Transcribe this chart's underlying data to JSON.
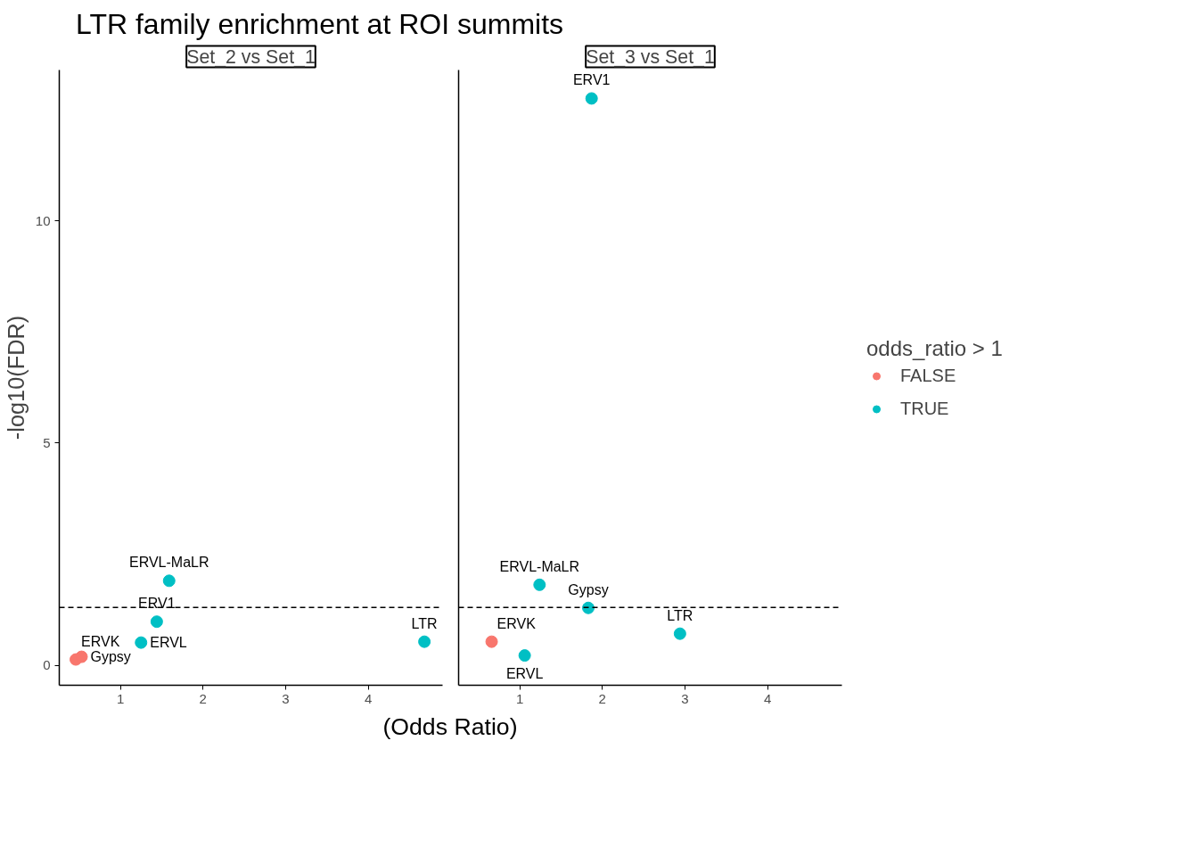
{
  "chart_data": [
    {
      "type": "scatter",
      "title": "LTR family enrichment at ROI summits",
      "subtitle": "Set_2 vs Set_1",
      "xlabel": "(Odds Ratio)",
      "ylabel": "-log10(FDR)",
      "xlim": [
        0.26,
        4.9
      ],
      "ylim": [
        -0.45,
        13.39
      ],
      "xticks": [
        1,
        2,
        3,
        4
      ],
      "yticks": [
        0,
        5,
        10
      ],
      "grid": false,
      "marker": "circle",
      "tick_labels": "xy",
      "series": [
        {
          "color": "#f8766d",
          "x": [
            0.46,
            0.53
          ],
          "values": [
            0.13,
            0.19
          ]
        },
        {
          "color": "#00bfc4",
          "x": [
            1.59,
            1.44,
            1.25,
            4.68
          ],
          "values": [
            1.9,
            0.98,
            0.51,
            0.53
          ]
        }
      ],
      "annotations": [
        {
          "text": "ERVK",
          "x": 0.46,
          "y": 0.13
        },
        {
          "text": "Gypsy",
          "x": 0.53,
          "y": 0.19
        },
        {
          "text": "ERVL-MaLR",
          "x": 1.59,
          "y": 1.9
        },
        {
          "text": "ERV1",
          "x": 1.44,
          "y": 0.98
        },
        {
          "text": "ERVL",
          "x": 1.25,
          "y": 0.51
        },
        {
          "text": "LTR",
          "x": 4.68,
          "y": 0.53
        }
      ],
      "ref_lines": [
        {
          "axis": "y",
          "value": 1.3,
          "line_style": "dashed"
        }
      ]
    },
    {
      "type": "scatter",
      "subtitle": "Set_3 vs Set_1",
      "legend_title": "odds_ratio > 1",
      "xlim": [
        0.26,
        4.9
      ],
      "ylim": [
        -0.45,
        13.39
      ],
      "xticks": [
        1,
        2,
        3,
        4
      ],
      "grid": false,
      "legend": "right",
      "marker": "circle",
      "tick_labels": "x",
      "series": [
        {
          "name": "FALSE",
          "color": "#f8766d",
          "x": [
            0.66
          ],
          "values": [
            0.53
          ]
        },
        {
          "name": "TRUE",
          "color": "#00bfc4",
          "x": [
            1.87,
            1.24,
            1.83,
            1.06,
            2.94
          ],
          "values": [
            12.75,
            1.81,
            1.29,
            0.22,
            0.71
          ]
        }
      ],
      "annotations": [
        {
          "text": "ERV1",
          "x": 1.87,
          "y": 12.75
        },
        {
          "text": "ERVL-MaLR",
          "x": 1.24,
          "y": 1.81
        },
        {
          "text": "Gypsy",
          "x": 1.83,
          "y": 1.29
        },
        {
          "text": "ERVK",
          "x": 0.66,
          "y": 0.53
        },
        {
          "text": "ERVL",
          "x": 1.06,
          "y": 0.22
        },
        {
          "text": "LTR",
          "x": 2.94,
          "y": 0.71
        }
      ],
      "ref_lines": [
        {
          "axis": "y",
          "value": 1.3,
          "line_style": "dashed"
        }
      ]
    }
  ]
}
